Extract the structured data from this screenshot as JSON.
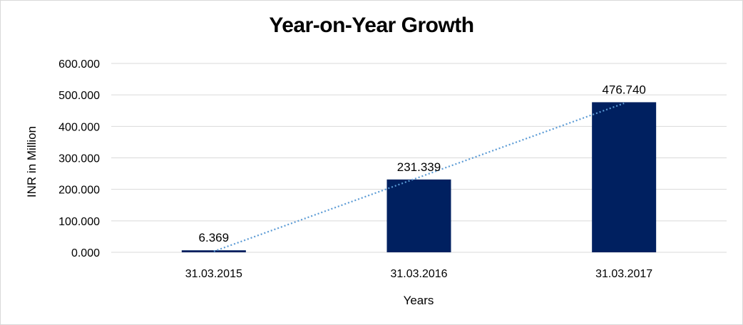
{
  "chart_data": {
    "type": "bar",
    "title": "Year-on-Year Growth",
    "xlabel": "Years",
    "ylabel": "INR in Million",
    "categories": [
      "31.03.2015",
      "31.03.2016",
      "31.03.2017"
    ],
    "series": [
      {
        "values": [
          6.369,
          231.339,
          476.74
        ]
      }
    ],
    "data_labels": [
      "6.369",
      "231.339",
      "476.740"
    ],
    "ylim": [
      0,
      600
    ],
    "yticks": [
      0,
      100,
      200,
      300,
      400,
      500,
      600
    ],
    "ytick_labels": [
      "0.000",
      "100.000",
      "200.000",
      "300.000",
      "400.000",
      "500.000",
      "600.000"
    ],
    "trendline": {
      "type": "linear",
      "style": "dotted"
    },
    "grid": true,
    "legend": "none"
  },
  "colors": {
    "bar": "#002060",
    "trendline": "#5b9bd5",
    "grid": "#d9d9d9"
  }
}
